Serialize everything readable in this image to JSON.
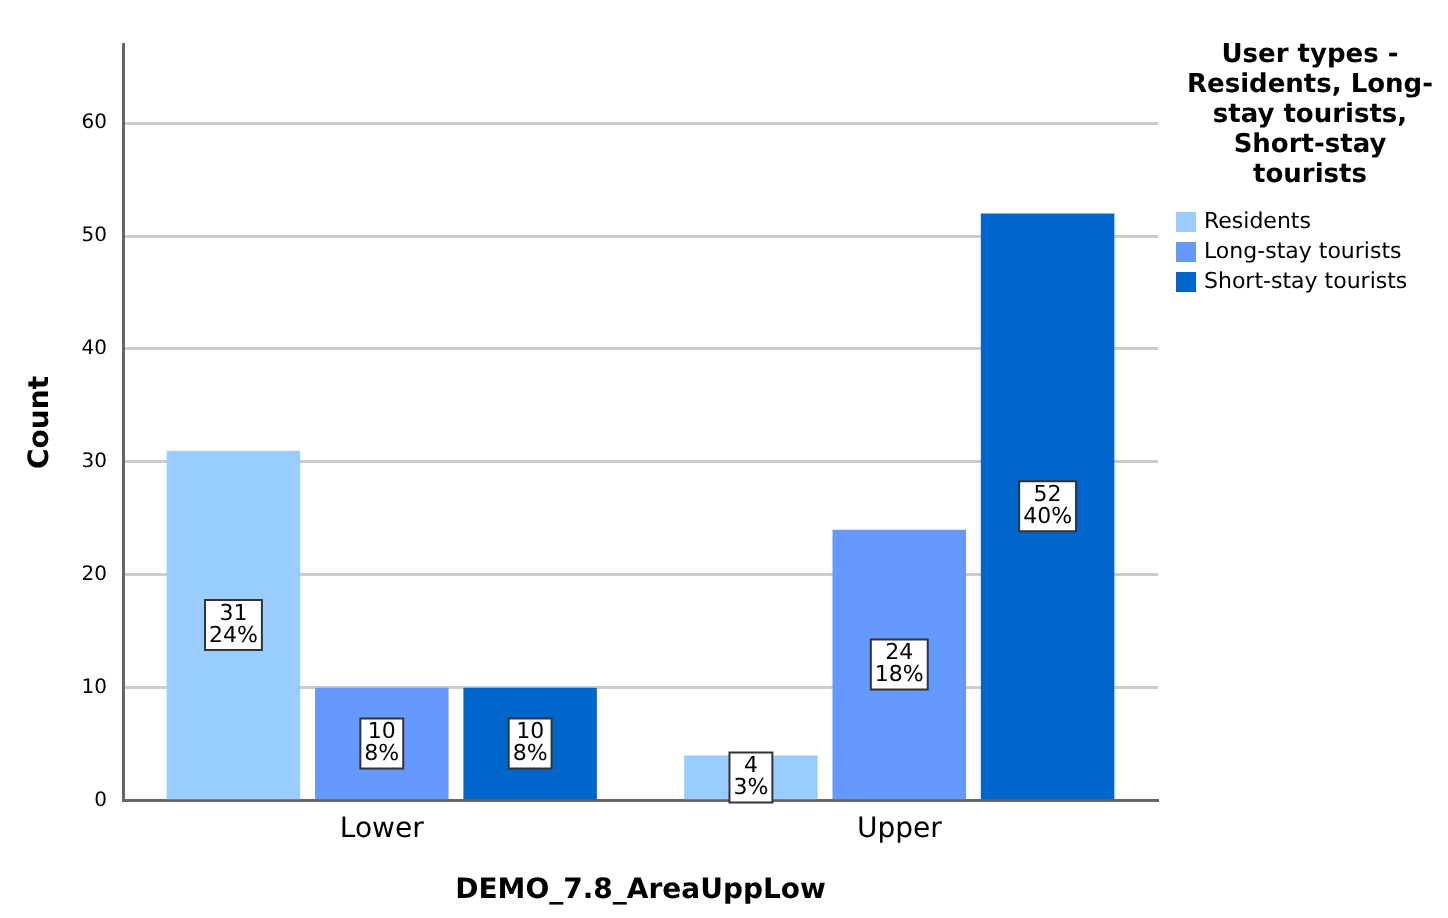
{
  "chart_data": {
    "type": "bar",
    "xlabel": "DEMO_7.8_AreaUppLow",
    "ylabel": "Count",
    "legend_title": "User types - Residents, Long-stay tourists, Short-stay tourists",
    "categories": [
      "Lower",
      "Upper"
    ],
    "series": [
      {
        "name": "Residents",
        "color": "#99ccff",
        "values": [
          31,
          4
        ],
        "value_labels": [
          "31\n24%",
          "4\n3%"
        ]
      },
      {
        "name": "Long-stay tourists",
        "color": "#6699ff",
        "values": [
          10,
          24
        ],
        "value_labels": [
          "10\n8%",
          "24\n18%"
        ]
      },
      {
        "name": "Short-stay tourists",
        "color": "#0066cc",
        "values": [
          10,
          52
        ],
        "value_labels": [
          "10\n8%",
          "52\n40%"
        ]
      }
    ],
    "ylim": [
      0,
      67
    ],
    "yticks": [
      0,
      10,
      20,
      30,
      40,
      50,
      60
    ],
    "grid": "y",
    "legend": "top right"
  }
}
